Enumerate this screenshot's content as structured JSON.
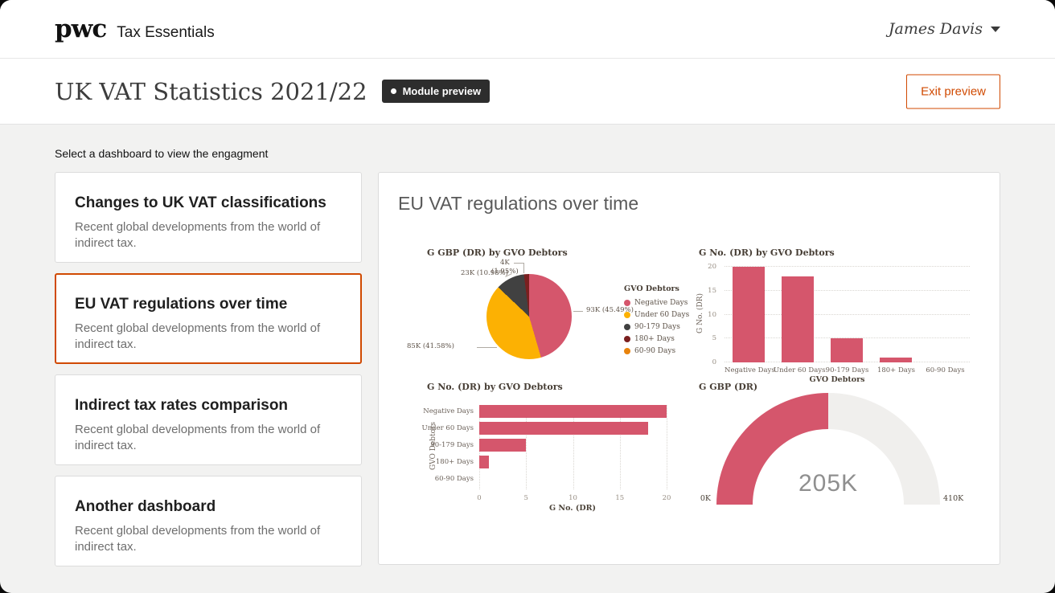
{
  "colors": {
    "accent_orange": "#d04a02",
    "chart_pink": "#d5566c",
    "chart_amber": "#fcb103",
    "chart_dark_gray": "#414141",
    "chart_maroon": "#7a1f1f",
    "chart_orange": "#e8830c",
    "gauge_track": "#f0efed"
  },
  "header": {
    "logo": "pwc",
    "app_name": "Tax Essentials",
    "user_name": "James Davis"
  },
  "page_header": {
    "title": "UK VAT Statistics 2021/22",
    "badge_label": "Module preview",
    "exit_button_label": "Exit preview"
  },
  "sidebar": {
    "prompt": "Select a dashboard to view the engagment",
    "cards": [
      {
        "title": "Changes to UK VAT classifications",
        "description": "Recent global developments from the world of indirect tax.",
        "selected": false
      },
      {
        "title": "EU VAT regulations over time",
        "description": "Recent global developments from the world of indirect tax.",
        "selected": true
      },
      {
        "title": "Indirect tax rates comparison",
        "description": "Recent global developments from the world of indirect tax.",
        "selected": false
      },
      {
        "title": "Another dashboard",
        "description": "Recent global developments from the world of indirect tax.",
        "selected": false
      }
    ]
  },
  "main": {
    "title": "EU VAT regulations over time"
  },
  "chart_data": [
    {
      "type": "pie",
      "title": "G GBP (DR) by GVO Debtors",
      "legend_title": "GVO Debtors",
      "legend_position": "right",
      "slices": [
        {
          "name": "Negative Days",
          "value": "93K",
          "pct": 45.49,
          "callout": "93K (45.49%)",
          "color": "#d5566c"
        },
        {
          "name": "Under 60 Days",
          "value": "85K",
          "pct": 41.58,
          "callout": "85K (41.58%)",
          "color": "#fcb103"
        },
        {
          "name": "90-179 Days",
          "value": "23K",
          "pct": 10.98,
          "callout": "23K (10.98%)",
          "color": "#414141"
        },
        {
          "name": "180+ Days",
          "value": "4K",
          "pct": 1.95,
          "callout": "4K",
          "callout_line2": "(1.95%)",
          "color": "#7a1f1f"
        },
        {
          "name": "60-90 Days",
          "value": "0K",
          "pct": 0,
          "callout": "",
          "color": "#e8830c"
        }
      ]
    },
    {
      "type": "bar",
      "title": "G No. (DR) by GVO Debtors",
      "xlabel": "GVO Debtors",
      "ylabel": "G No. (DR)",
      "categories": [
        "Negative Days",
        "Under 60 Days",
        "90-179 Days",
        "180+ Days",
        "60-90 Days"
      ],
      "values": [
        20,
        18,
        5,
        1,
        0
      ],
      "yticks": [
        0,
        5,
        10,
        15,
        20
      ],
      "ylim": [
        0,
        20
      ],
      "grid": "horizontal dotted",
      "bar_color": "#d5566c"
    },
    {
      "type": "bar-horizontal",
      "title": "G No. (DR) by GVO Debtors",
      "xlabel": "G No. (DR)",
      "ylabel": "GVO Debtors",
      "categories": [
        "Negative Days",
        "Under 60 Days",
        "90-179 Days",
        "180+ Days",
        "60-90 Days"
      ],
      "values": [
        20,
        18,
        5,
        1,
        0
      ],
      "xticks": [
        0,
        5,
        10,
        15,
        20
      ],
      "xlim": [
        0,
        20
      ],
      "grid": "vertical dotted",
      "bar_color": "#d5566c"
    },
    {
      "type": "gauge",
      "title": "G GBP (DR)",
      "value": 205,
      "min": 0,
      "max": 410,
      "value_label": "205K",
      "min_label": "0K",
      "max_label": "410K",
      "fill_color": "#d5566c",
      "track_color": "#f0efed"
    }
  ]
}
